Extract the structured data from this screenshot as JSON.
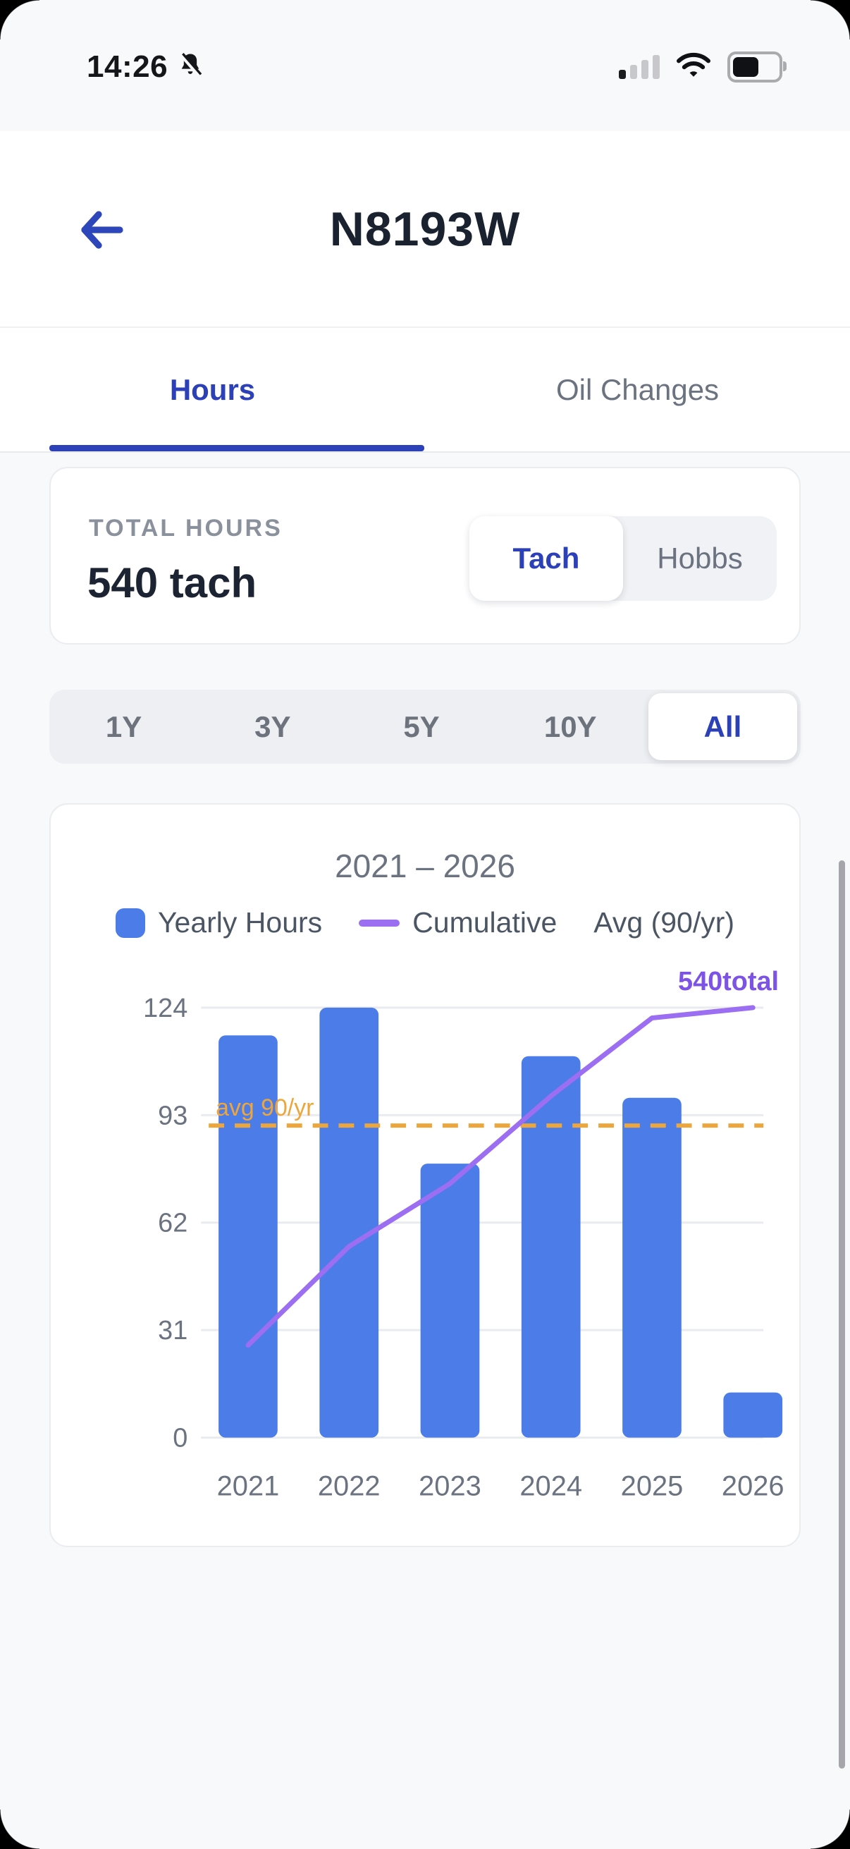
{
  "status_bar": {
    "time": "14:26",
    "icons": [
      "bell-slash-icon",
      "cellular-signal-icon",
      "wifi-icon",
      "battery-icon"
    ],
    "cellular_bars_active": 1,
    "cellular_bars_total": 4
  },
  "header": {
    "title": "N8193W"
  },
  "tabs": [
    {
      "label": "Hours",
      "active": true
    },
    {
      "label": "Oil Changes",
      "active": false
    }
  ],
  "total_hours_card": {
    "label": "TOTAL HOURS",
    "value": "540 tach",
    "toggle": {
      "options": [
        "Tach",
        "Hobbs"
      ],
      "selected": "Tach"
    }
  },
  "range_selector": {
    "options": [
      "1Y",
      "3Y",
      "5Y",
      "10Y",
      "All"
    ],
    "selected": "All"
  },
  "chart_card": {
    "title": "2021 – 2026",
    "legend": [
      {
        "label": "Yearly Hours",
        "swatch": "square",
        "color": "#4b7ce8"
      },
      {
        "label": "Cumulative",
        "swatch": "line",
        "color": "#9b6ef2"
      },
      {
        "label": "Avg (90/yr)",
        "swatch": "none"
      }
    ]
  },
  "chart_data": {
    "type": "bar",
    "title": "2021 – 2026",
    "categories": [
      "2021",
      "2022",
      "2023",
      "2024",
      "2025",
      "2026"
    ],
    "series": [
      {
        "name": "Yearly Hours",
        "type": "bar",
        "values": [
          116,
          124,
          79,
          110,
          98,
          13
        ],
        "color": "#4b7ce8"
      },
      {
        "name": "Cumulative",
        "type": "line",
        "values": [
          116,
          240,
          319,
          429,
          527,
          540
        ],
        "color": "#9b6ef2",
        "axis": "secondary"
      }
    ],
    "avg_line": {
      "value": 90,
      "label": "avg 90/yr",
      "color": "#eda63c",
      "style": "dashed"
    },
    "annotation": {
      "text": "540total",
      "color": "#7d53e6",
      "position": "end-of-cumulative-line"
    },
    "yticks": [
      0,
      31,
      62,
      93,
      124
    ],
    "ylim": [
      0,
      136
    ],
    "secondary_axis_max_at_top_tick": 540,
    "grid": true,
    "legend_position": "top",
    "xlabel": "",
    "ylabel": ""
  },
  "colors": {
    "accent_blue": "#2c41b8",
    "bar_blue": "#4b7ce8",
    "cumulative_purple": "#9b6ef2",
    "annotation_purple": "#7d53e6",
    "avg_orange": "#eda63c",
    "text_dark": "#1c2433",
    "text_gray": "#6b7280"
  }
}
